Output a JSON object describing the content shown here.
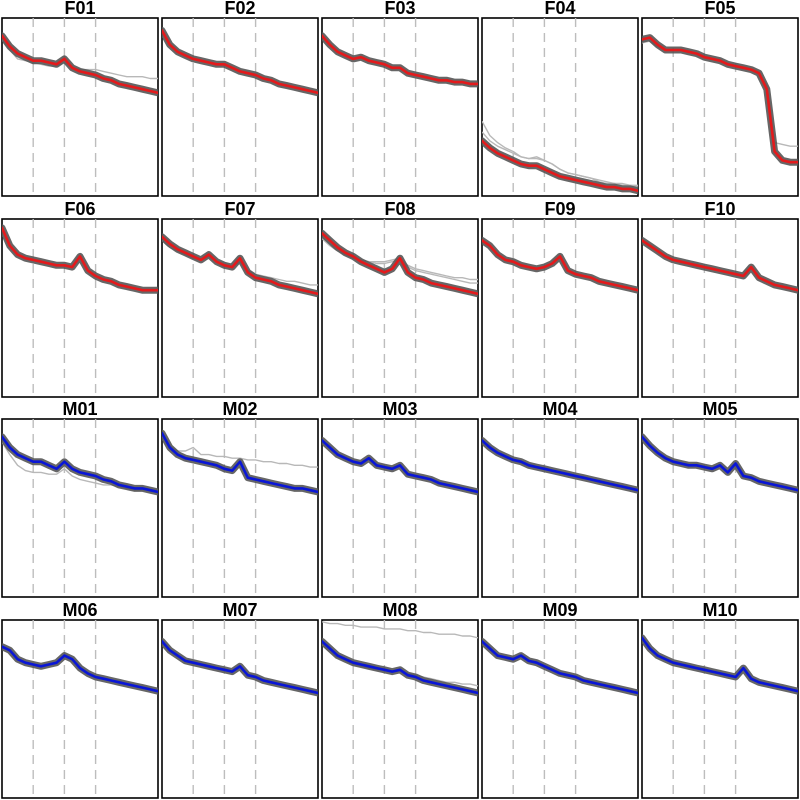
{
  "figure": {
    "colors": {
      "female": "#e31a1c",
      "male": "#0a16d6",
      "individual_dark": "#555555",
      "individual_light": "#b8b8b8",
      "reference_lines": "#bdbdbd"
    },
    "grid": "none",
    "axis_ticks": "none"
  },
  "chart_data": {
    "type": "line",
    "layout": {
      "rows": 4,
      "cols": 5
    },
    "x": [
      0,
      0.05,
      0.1,
      0.15,
      0.2,
      0.25,
      0.3,
      0.35,
      0.4,
      0.45,
      0.5,
      0.55,
      0.6,
      0.65,
      0.7,
      0.75,
      0.8,
      0.85,
      0.9,
      0.95,
      1
    ],
    "xlim": [
      0,
      1
    ],
    "ylim": [
      0,
      1
    ],
    "reference_x": [
      0.2,
      0.4,
      0.6
    ],
    "panels": [
      {
        "title": "F01",
        "group": "female",
        "mean": [
          0.9,
          0.84,
          0.8,
          0.78,
          0.76,
          0.76,
          0.75,
          0.74,
          0.77,
          0.72,
          0.7,
          0.69,
          0.68,
          0.66,
          0.65,
          0.63,
          0.62,
          0.61,
          0.6,
          0.59,
          0.58
        ],
        "individuals": [
          {
            "shade": "light",
            "values": [
              0.88,
              0.82,
              0.77,
              0.76,
              0.75,
              0.74,
              0.73,
              0.73,
              0.75,
              0.72,
              0.71,
              0.71,
              0.71,
              0.7,
              0.69,
              0.68,
              0.67,
              0.67,
              0.67,
              0.66,
              0.66
            ]
          }
        ]
      },
      {
        "title": "F02",
        "group": "female",
        "mean": [
          0.93,
          0.85,
          0.81,
          0.79,
          0.77,
          0.76,
          0.75,
          0.74,
          0.74,
          0.72,
          0.7,
          0.69,
          0.68,
          0.66,
          0.65,
          0.63,
          0.62,
          0.61,
          0.6,
          0.59,
          0.58
        ],
        "individuals": []
      },
      {
        "title": "F03",
        "group": "female",
        "mean": [
          0.9,
          0.85,
          0.81,
          0.79,
          0.77,
          0.78,
          0.76,
          0.75,
          0.74,
          0.72,
          0.72,
          0.69,
          0.68,
          0.67,
          0.66,
          0.65,
          0.65,
          0.64,
          0.64,
          0.63,
          0.63
        ],
        "individuals": []
      },
      {
        "title": "F04",
        "group": "female",
        "mean": [
          0.31,
          0.27,
          0.24,
          0.22,
          0.2,
          0.18,
          0.17,
          0.17,
          0.15,
          0.13,
          0.11,
          0.1,
          0.09,
          0.08,
          0.07,
          0.06,
          0.05,
          0.05,
          0.04,
          0.04,
          0.03
        ],
        "individuals": [
          {
            "shade": "light",
            "values": [
              0.42,
              0.34,
              0.3,
              0.27,
              0.25,
              0.22,
              0.21,
              0.22,
              0.2,
              0.18,
              0.15,
              0.13,
              0.12,
              0.11,
              0.1,
              0.09,
              0.08,
              0.07,
              0.07,
              0.06,
              0.06
            ]
          },
          {
            "shade": "light",
            "values": [
              0.36,
              0.31,
              0.28,
              0.26,
              0.24,
              0.22,
              0.21,
              0.21,
              0.2,
              0.18,
              0.15,
              0.13,
              0.12,
              0.11,
              0.1,
              0.08,
              0.07,
              0.07,
              0.06,
              0.06,
              0.05
            ]
          }
        ]
      },
      {
        "title": "F05",
        "group": "female",
        "mean": [
          0.88,
          0.89,
          0.85,
          0.82,
          0.82,
          0.82,
          0.81,
          0.8,
          0.78,
          0.77,
          0.76,
          0.74,
          0.73,
          0.72,
          0.71,
          0.69,
          0.6,
          0.25,
          0.2,
          0.19,
          0.19
        ],
        "individuals": [
          {
            "shade": "light",
            "values": [
              0.86,
              0.87,
              0.84,
              0.82,
              0.82,
              0.82,
              0.81,
              0.8,
              0.78,
              0.77,
              0.76,
              0.74,
              0.73,
              0.72,
              0.71,
              0.69,
              0.62,
              0.3,
              0.29,
              0.28,
              0.28
            ]
          }
        ]
      },
      {
        "title": "F06",
        "group": "female",
        "mean": [
          0.95,
          0.85,
          0.8,
          0.78,
          0.77,
          0.76,
          0.75,
          0.74,
          0.74,
          0.73,
          0.79,
          0.71,
          0.68,
          0.66,
          0.65,
          0.63,
          0.62,
          0.61,
          0.6,
          0.6,
          0.6
        ],
        "individuals": []
      },
      {
        "title": "F07",
        "group": "female",
        "mean": [
          0.9,
          0.86,
          0.83,
          0.81,
          0.79,
          0.77,
          0.8,
          0.76,
          0.74,
          0.73,
          0.78,
          0.7,
          0.67,
          0.66,
          0.65,
          0.63,
          0.62,
          0.61,
          0.6,
          0.59,
          0.58
        ],
        "individuals": [
          {
            "shade": "light",
            "values": [
              0.88,
              0.84,
              0.82,
              0.8,
              0.78,
              0.77,
              0.79,
              0.76,
              0.74,
              0.73,
              0.76,
              0.71,
              0.69,
              0.68,
              0.67,
              0.66,
              0.65,
              0.65,
              0.64,
              0.63,
              0.63
            ]
          }
        ]
      },
      {
        "title": "F08",
        "group": "female",
        "mean": [
          0.92,
          0.88,
          0.84,
          0.81,
          0.79,
          0.76,
          0.74,
          0.72,
          0.7,
          0.72,
          0.78,
          0.7,
          0.67,
          0.66,
          0.64,
          0.63,
          0.62,
          0.61,
          0.6,
          0.59,
          0.58
        ],
        "individuals": [
          {
            "shade": "light",
            "values": [
              0.9,
              0.86,
              0.83,
              0.8,
              0.79,
              0.77,
              0.76,
              0.76,
              0.76,
              0.77,
              0.78,
              0.74,
              0.72,
              0.71,
              0.7,
              0.69,
              0.68,
              0.67,
              0.67,
              0.66,
              0.66
            ]
          },
          {
            "shade": "light",
            "values": [
              0.89,
              0.85,
              0.82,
              0.8,
              0.78,
              0.77,
              0.76,
              0.75,
              0.75,
              0.76,
              0.77,
              0.73,
              0.71,
              0.7,
              0.69,
              0.68,
              0.67,
              0.66,
              0.65,
              0.64,
              0.64
            ]
          }
        ]
      },
      {
        "title": "F09",
        "group": "female",
        "mean": [
          0.88,
          0.85,
          0.8,
          0.77,
          0.76,
          0.74,
          0.73,
          0.72,
          0.73,
          0.75,
          0.79,
          0.71,
          0.69,
          0.68,
          0.67,
          0.65,
          0.64,
          0.63,
          0.62,
          0.61,
          0.6
        ],
        "individuals": []
      },
      {
        "title": "F10",
        "group": "female",
        "mean": [
          0.88,
          0.85,
          0.82,
          0.79,
          0.77,
          0.76,
          0.75,
          0.74,
          0.73,
          0.72,
          0.71,
          0.7,
          0.69,
          0.68,
          0.73,
          0.67,
          0.65,
          0.63,
          0.62,
          0.61,
          0.6
        ],
        "individuals": []
      },
      {
        "title": "M01",
        "group": "male",
        "mean": [
          0.9,
          0.84,
          0.8,
          0.78,
          0.76,
          0.76,
          0.74,
          0.72,
          0.76,
          0.72,
          0.7,
          0.69,
          0.68,
          0.66,
          0.65,
          0.63,
          0.62,
          0.61,
          0.61,
          0.6,
          0.59
        ],
        "individuals": [
          {
            "shade": "light",
            "values": [
              0.87,
              0.8,
              0.74,
              0.71,
              0.7,
              0.7,
              0.69,
              0.69,
              0.72,
              0.68,
              0.66,
              0.65,
              0.64,
              0.63,
              0.63,
              0.62,
              0.61,
              0.6,
              0.6,
              0.6,
              0.6
            ]
          }
        ]
      },
      {
        "title": "M02",
        "group": "male",
        "mean": [
          0.92,
          0.84,
          0.8,
          0.78,
          0.77,
          0.76,
          0.75,
          0.74,
          0.72,
          0.71,
          0.76,
          0.67,
          0.66,
          0.65,
          0.64,
          0.63,
          0.62,
          0.61,
          0.61,
          0.6,
          0.59
        ],
        "individuals": [
          {
            "shade": "light",
            "values": [
              0.9,
              0.85,
              0.82,
              0.82,
              0.84,
              0.8,
              0.8,
              0.79,
              0.79,
              0.78,
              0.78,
              0.77,
              0.77,
              0.76,
              0.76,
              0.75,
              0.75,
              0.74,
              0.74,
              0.73,
              0.73
            ]
          }
        ]
      },
      {
        "title": "M03",
        "group": "male",
        "mean": [
          0.88,
          0.84,
          0.8,
          0.78,
          0.76,
          0.75,
          0.78,
          0.74,
          0.73,
          0.72,
          0.74,
          0.69,
          0.68,
          0.67,
          0.66,
          0.64,
          0.63,
          0.62,
          0.61,
          0.6,
          0.59
        ],
        "individuals": []
      },
      {
        "title": "M04",
        "group": "male",
        "mean": [
          0.88,
          0.84,
          0.81,
          0.79,
          0.77,
          0.76,
          0.74,
          0.73,
          0.72,
          0.71,
          0.7,
          0.69,
          0.68,
          0.67,
          0.66,
          0.65,
          0.64,
          0.63,
          0.62,
          0.61,
          0.6
        ],
        "individuals": []
      },
      {
        "title": "M05",
        "group": "male",
        "mean": [
          0.9,
          0.85,
          0.81,
          0.78,
          0.76,
          0.75,
          0.74,
          0.74,
          0.73,
          0.72,
          0.74,
          0.7,
          0.75,
          0.68,
          0.67,
          0.65,
          0.64,
          0.63,
          0.62,
          0.61,
          0.6
        ],
        "individuals": []
      },
      {
        "title": "M06",
        "group": "male",
        "mean": [
          0.85,
          0.83,
          0.78,
          0.76,
          0.75,
          0.74,
          0.75,
          0.76,
          0.8,
          0.78,
          0.73,
          0.7,
          0.68,
          0.67,
          0.66,
          0.65,
          0.64,
          0.63,
          0.62,
          0.61,
          0.6
        ],
        "individuals": []
      },
      {
        "title": "M07",
        "group": "male",
        "mean": [
          0.88,
          0.83,
          0.8,
          0.77,
          0.76,
          0.75,
          0.74,
          0.73,
          0.72,
          0.71,
          0.74,
          0.69,
          0.68,
          0.66,
          0.65,
          0.64,
          0.63,
          0.62,
          0.61,
          0.6,
          0.59
        ],
        "individuals": []
      },
      {
        "title": "M08",
        "group": "male",
        "mean": [
          0.88,
          0.84,
          0.8,
          0.78,
          0.76,
          0.75,
          0.74,
          0.73,
          0.72,
          0.71,
          0.72,
          0.69,
          0.68,
          0.66,
          0.65,
          0.64,
          0.63,
          0.62,
          0.61,
          0.6,
          0.59
        ],
        "individuals": [
          {
            "shade": "light",
            "values": [
              0.99,
              0.98,
              0.98,
              0.97,
              0.97,
              0.96,
              0.96,
              0.96,
              0.95,
              0.95,
              0.95,
              0.94,
              0.94,
              0.93,
              0.93,
              0.92,
              0.92,
              0.92,
              0.91,
              0.91,
              0.9
            ]
          },
          {
            "shade": "light",
            "values": [
              0.86,
              0.82,
              0.79,
              0.77,
              0.75,
              0.74,
              0.73,
              0.72,
              0.72,
              0.71,
              0.72,
              0.7,
              0.69,
              0.68,
              0.67,
              0.66,
              0.65,
              0.65,
              0.64,
              0.64,
              0.63
            ]
          }
        ]
      },
      {
        "title": "M09",
        "group": "male",
        "mean": [
          0.88,
          0.84,
          0.8,
          0.79,
          0.78,
          0.8,
          0.77,
          0.76,
          0.74,
          0.72,
          0.7,
          0.69,
          0.68,
          0.66,
          0.65,
          0.64,
          0.63,
          0.62,
          0.61,
          0.6,
          0.59
        ],
        "individuals": []
      },
      {
        "title": "M10",
        "group": "male",
        "mean": [
          0.9,
          0.84,
          0.8,
          0.78,
          0.76,
          0.75,
          0.74,
          0.73,
          0.72,
          0.71,
          0.7,
          0.69,
          0.68,
          0.73,
          0.67,
          0.65,
          0.64,
          0.63,
          0.62,
          0.61,
          0.6
        ],
        "individuals": []
      }
    ]
  }
}
